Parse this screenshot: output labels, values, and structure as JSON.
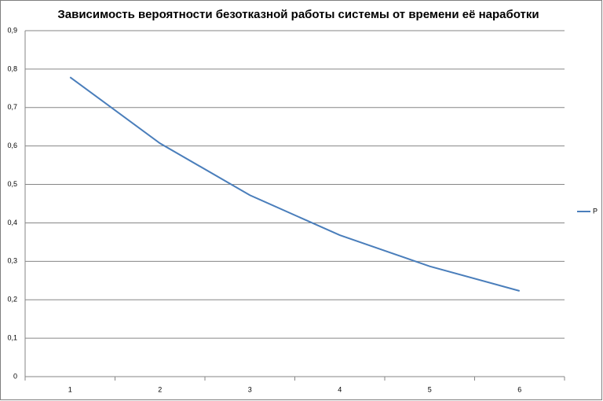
{
  "chart_data": {
    "type": "line",
    "title": "Зависимость вероятности безотказной работы системы от времени её наработки",
    "categories": [
      "1",
      "2",
      "3",
      "4",
      "5",
      "6"
    ],
    "series": [
      {
        "name": "P",
        "color": "#4a7ebb",
        "values": [
          0.779,
          0.607,
          0.472,
          0.368,
          0.287,
          0.223
        ]
      }
    ],
    "ylim": [
      0,
      0.9
    ],
    "yticks": [
      0,
      {
        "value": 0.1,
        "label": "0,1"
      },
      {
        "value": 0.2,
        "label": "0,2"
      },
      {
        "value": 0.3,
        "label": "0,3"
      },
      {
        "value": 0.4,
        "label": "0,4"
      },
      {
        "value": 0.5,
        "label": "0,5"
      },
      {
        "value": 0.6,
        "label": "0,6"
      },
      {
        "value": 0.7,
        "label": "0,7"
      },
      {
        "value": 0.8,
        "label": "0,8"
      },
      {
        "value": 0.9,
        "label": "0,9"
      }
    ],
    "grid": true,
    "legend": "right"
  }
}
